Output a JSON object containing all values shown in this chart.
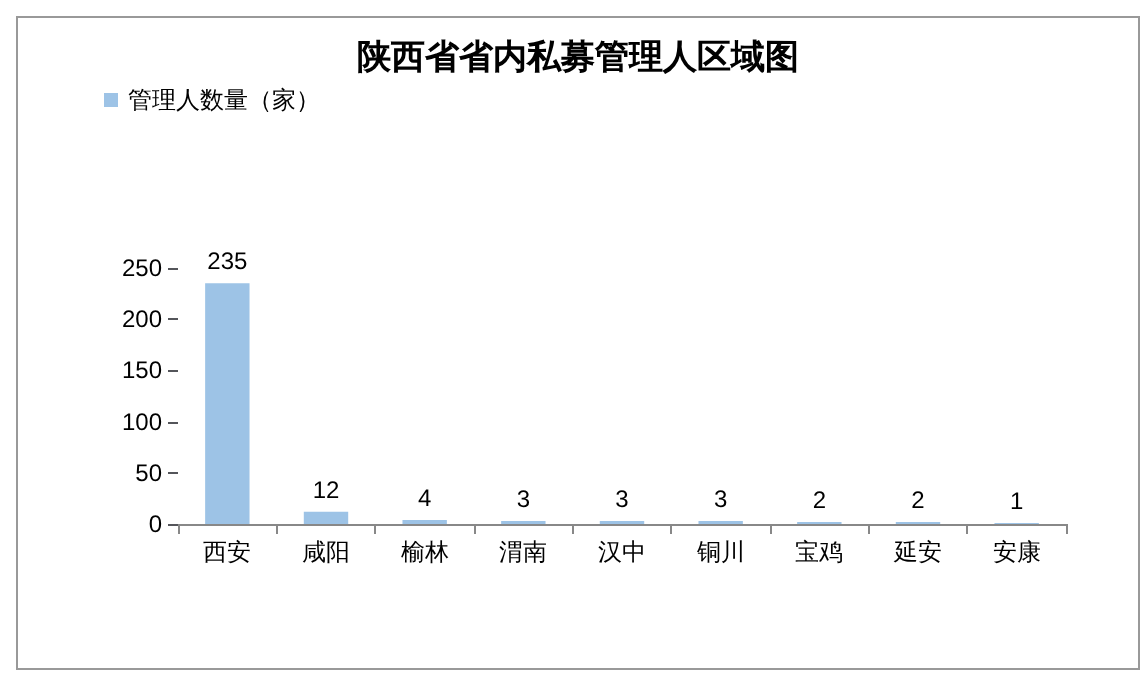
{
  "chart_data": {
    "type": "bar",
    "title": "陕西省省内私募管理人区域图",
    "categories": [
      "西安",
      "咸阳",
      "榆林",
      "渭南",
      "汉中",
      "铜川",
      "宝鸡",
      "延安",
      "安康"
    ],
    "series": [
      {
        "name": "管理人数量（家）",
        "color": "#9dc3e6",
        "values": [
          235,
          12,
          4,
          3,
          3,
          3,
          2,
          2,
          1
        ]
      }
    ],
    "ylim": [
      0,
      250
    ],
    "yticks": [
      0,
      50,
      100,
      150,
      200,
      250
    ],
    "legend": "top left",
    "data_labels": true
  }
}
